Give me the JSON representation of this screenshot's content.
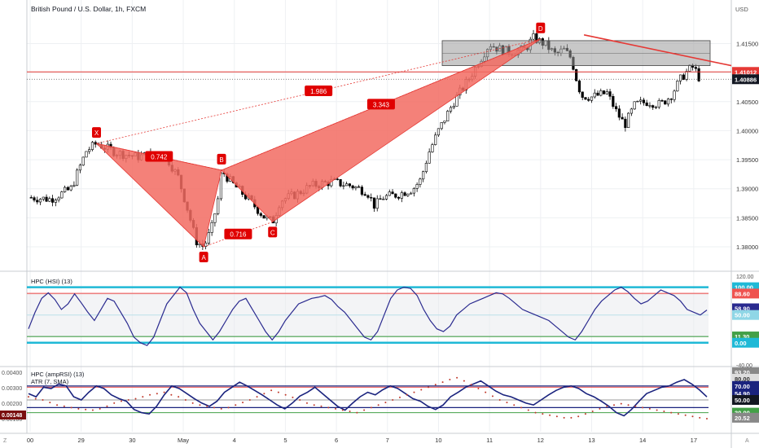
{
  "header": {
    "title": "British Pound / U.S. Dollar, 1h, FXCM",
    "currency": "USD"
  },
  "colors": {
    "bg": "#ffffff",
    "grid": "#eef0f3",
    "up": "#ffffff",
    "down": "#000000",
    "pattern_fill": "#f26b61",
    "pattern_line": "#e53935",
    "label_bg": "#e00000",
    "zone": "#9a9a9a",
    "hsi_line": "#2a2a8f",
    "cyan": "#1fb9d6",
    "red_band": "#ef5350",
    "green_band": "#43a047",
    "amp_line": "#1a237e",
    "atr_dots": "#c0392b"
  },
  "chart_data": [
    {
      "type": "candlestick",
      "title": "British Pound / U.S. Dollar, 1h, FXCM",
      "x_tick_labels": [
        "00",
        "29",
        "30",
        "May",
        "4",
        "5",
        "6",
        "7",
        "10",
        "11",
        "12",
        "13",
        "14",
        "17"
      ],
      "y_tick_labels": [
        "1.41500",
        "1.41000",
        "1.40500",
        "1.40000",
        "1.39500",
        "1.39000",
        "1.38500",
        "1.38000"
      ],
      "ylim": [
        1.3765,
        1.4225
      ],
      "price_badges": [
        {
          "label": "1.41012",
          "value": 1.41012,
          "style": "red"
        },
        {
          "label": "1.40886",
          "value": 1.40886,
          "style": "dark"
        }
      ],
      "harmonic_pattern": {
        "points": [
          {
            "label": "X",
            "date_index": 1.3,
            "price": 1.3978
          },
          {
            "label": "A",
            "date_index": 3.4,
            "price": 1.38
          },
          {
            "label": "B",
            "date_index": 3.75,
            "price": 1.3932
          },
          {
            "label": "C",
            "date_index": 4.75,
            "price": 1.3843
          },
          {
            "label": "D",
            "date_index": 10.0,
            "price": 1.4158
          }
        ],
        "ratios": [
          {
            "label": "0.742",
            "between": "XA-B"
          },
          {
            "label": "0.716",
            "between": "A-C"
          },
          {
            "label": "1.986",
            "between": "X-D"
          },
          {
            "label": "3.343",
            "between": "B-D"
          }
        ]
      },
      "zone": {
        "from_price": 1.4112,
        "to_price": 1.4155
      },
      "trendline": {
        "from": [
          10.85,
          1.4165
        ],
        "to": [
          13.9,
          1.4112
        ]
      },
      "path_keypoints": [
        [
          0,
          1.3885
        ],
        [
          0.4,
          1.3882
        ],
        [
          0.8,
          1.39
        ],
        [
          1.1,
          1.3965
        ],
        [
          1.3,
          1.3978
        ],
        [
          1.7,
          1.3962
        ],
        [
          2.1,
          1.3955
        ],
        [
          2.5,
          1.396
        ],
        [
          2.7,
          1.395
        ],
        [
          2.9,
          1.392
        ],
        [
          3.1,
          1.386
        ],
        [
          3.25,
          1.381
        ],
        [
          3.4,
          1.38
        ],
        [
          3.55,
          1.383
        ],
        [
          3.7,
          1.389
        ],
        [
          3.75,
          1.3932
        ],
        [
          3.95,
          1.391
        ],
        [
          4.3,
          1.388
        ],
        [
          4.6,
          1.385
        ],
        [
          4.75,
          1.3843
        ],
        [
          4.9,
          1.388
        ],
        [
          5.2,
          1.389
        ],
        [
          5.5,
          1.3905
        ],
        [
          5.9,
          1.3912
        ],
        [
          6.3,
          1.3905
        ],
        [
          6.6,
          1.3895
        ],
        [
          6.75,
          1.387
        ],
        [
          6.9,
          1.3885
        ],
        [
          7.2,
          1.389
        ],
        [
          7.5,
          1.39
        ],
        [
          7.65,
          1.3915
        ],
        [
          7.8,
          1.396
        ],
        [
          8.0,
          1.4
        ],
        [
          8.3,
          1.405
        ],
        [
          8.6,
          1.409
        ],
        [
          8.8,
          1.412
        ],
        [
          9.0,
          1.415
        ],
        [
          9.15,
          1.4142
        ],
        [
          9.4,
          1.4135
        ],
        [
          9.7,
          1.414
        ],
        [
          9.85,
          1.416
        ],
        [
          10.1,
          1.4148
        ],
        [
          10.3,
          1.413
        ],
        [
          10.45,
          1.414
        ],
        [
          10.6,
          1.4125
        ],
        [
          10.7,
          1.409
        ],
        [
          10.8,
          1.406
        ],
        [
          11.0,
          1.4058
        ],
        [
          11.3,
          1.4065
        ],
        [
          11.5,
          1.403
        ],
        [
          11.65,
          1.401
        ],
        [
          11.85,
          1.4045
        ],
        [
          12.1,
          1.405
        ],
        [
          12.35,
          1.4045
        ],
        [
          12.55,
          1.406
        ],
        [
          12.75,
          1.409
        ],
        [
          12.9,
          1.4105
        ],
        [
          13.0,
          1.411
        ],
        [
          13.1,
          1.4092
        ],
        [
          13.15,
          1.40886
        ]
      ]
    },
    {
      "type": "line",
      "title": "HPC (HSI) (13)",
      "y_tick_labels": [
        "120.00",
        "-40.00"
      ],
      "ylim": [
        -40,
        120
      ],
      "levels": [
        100,
        88.6,
        50,
        11.3,
        0
      ],
      "badges": [
        {
          "label": "100.00",
          "style": "cyan"
        },
        {
          "label": "88.60",
          "style": "red"
        },
        {
          "label": "58.90",
          "style": "navy"
        },
        {
          "label": "50.00",
          "style": "light-cyan"
        },
        {
          "label": "11.30",
          "style": "green"
        },
        {
          "label": "0.00",
          "style": "cyan"
        }
      ],
      "series": [
        {
          "values": [
            25,
            55,
            80,
            90,
            78,
            60,
            70,
            88,
            72,
            55,
            40,
            60,
            80,
            75,
            55,
            35,
            10,
            0,
            -5,
            10,
            40,
            70,
            85,
            100,
            90,
            60,
            35,
            20,
            5,
            20,
            40,
            60,
            75,
            80,
            60,
            40,
            20,
            5,
            20,
            40,
            55,
            70,
            75,
            80,
            82,
            85,
            78,
            65,
            55,
            40,
            25,
            10,
            5,
            20,
            50,
            80,
            95,
            100,
            98,
            85,
            60,
            40,
            25,
            20,
            30,
            50,
            60,
            70,
            75,
            80,
            85,
            90,
            88,
            80,
            70,
            60,
            55,
            50,
            45,
            40,
            30,
            20,
            10,
            5,
            20,
            40,
            60,
            75,
            85,
            95,
            100,
            92,
            80,
            70,
            75,
            85,
            95,
            90,
            85,
            75,
            60,
            55,
            50,
            58.9
          ]
        }
      ]
    },
    {
      "type": "line",
      "title": "HPC (ampRSI) (13)",
      "subtitle": "ATR (7, SMA)",
      "y_tick_labels": [
        "0.00400",
        "0.00300",
        "0.00200",
        "0.00100"
      ],
      "ylim": [
        0,
        100
      ],
      "levels": [
        70,
        50,
        30
      ],
      "badges": [
        {
          "label": "93.20",
          "style": "grey"
        },
        {
          "label": "80.00",
          "style": "light"
        },
        {
          "label": "70.00",
          "style": "navy"
        },
        {
          "label": "54.90",
          "style": "navy"
        },
        {
          "label": "50.00",
          "style": "black"
        },
        {
          "label": "30.00",
          "style": "green"
        },
        {
          "label": "20.52",
          "style": "grey"
        },
        {
          "label": "0.00148",
          "style": "dark-red"
        }
      ],
      "series": [
        {
          "values": [
            60,
            55,
            70,
            68,
            75,
            72,
            55,
            50,
            62,
            72,
            68,
            58,
            52,
            48,
            35,
            30,
            28,
            40,
            58,
            72,
            68,
            60,
            52,
            45,
            40,
            48,
            62,
            70,
            78,
            72,
            65,
            58,
            50,
            42,
            36,
            45,
            56,
            62,
            70,
            60,
            50,
            40,
            34,
            45,
            55,
            62,
            58,
            66,
            72,
            68,
            60,
            52,
            48,
            40,
            35,
            42,
            55,
            62,
            70,
            75,
            80,
            72,
            64,
            58,
            55,
            50,
            45,
            42,
            50,
            58,
            65,
            70,
            72,
            68,
            60,
            55,
            48,
            40,
            30,
            25,
            35,
            48,
            60,
            65,
            70,
            72,
            78,
            82,
            75,
            66,
            54.9
          ]
        },
        {
          "values": [
            55,
            52,
            50,
            46,
            42,
            40,
            38,
            36,
            35,
            34,
            36,
            40,
            45,
            48,
            50,
            52,
            55,
            58,
            60,
            62,
            58,
            55,
            50,
            45,
            42,
            40,
            38,
            36,
            38,
            42,
            46,
            50,
            55,
            60,
            65,
            62,
            58,
            54,
            50,
            45,
            42,
            40,
            38,
            36,
            34,
            32,
            30,
            34,
            38,
            42,
            46,
            50,
            54,
            58,
            62,
            66,
            70,
            74,
            78,
            82,
            85,
            80,
            74,
            68,
            62,
            56,
            50,
            46,
            42,
            38,
            34,
            30,
            28,
            26,
            24,
            22,
            22,
            24,
            28,
            32,
            36,
            40,
            42,
            44,
            42,
            40,
            38,
            36,
            34,
            32,
            30,
            28,
            26,
            24,
            22,
            20.52
          ]
        }
      ]
    }
  ]
}
